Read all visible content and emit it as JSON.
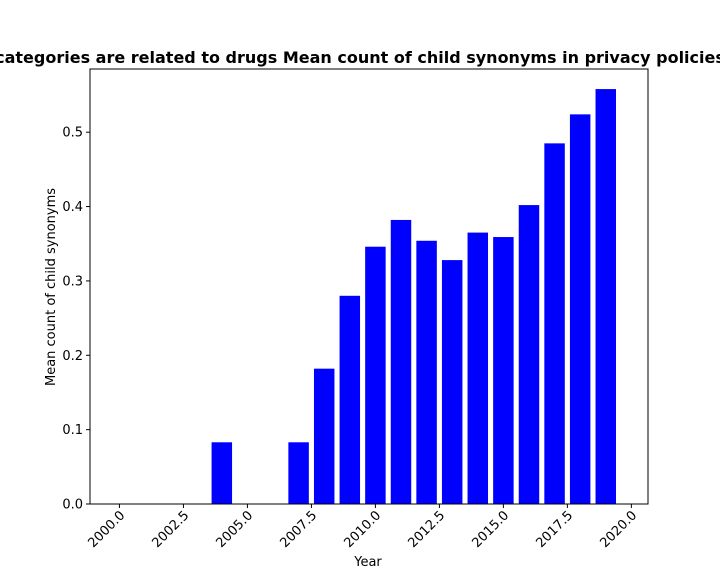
{
  "chart_data": {
    "type": "bar",
    "title": "categories are related to drugs Mean count of child synonyms in privacy policies",
    "xlabel": "Year",
    "ylabel": "Mean count of child synonyms",
    "bar_color": "#0000ff",
    "bar_width": 0.8,
    "xlim": [
      1998.85,
      2020.65
    ],
    "ylim": [
      0,
      0.585
    ],
    "xticks": [
      2000.0,
      2002.5,
      2005.0,
      2007.5,
      2010.0,
      2012.5,
      2015.0,
      2017.5,
      2020.0
    ],
    "xtick_labels": [
      "2000.0",
      "2002.5",
      "2005.0",
      "2007.5",
      "2010.0",
      "2012.5",
      "2015.0",
      "2017.5",
      "2020.0"
    ],
    "yticks": [
      0.0,
      0.1,
      0.2,
      0.3,
      0.4,
      0.5
    ],
    "ytick_labels": [
      "0.0",
      "0.1",
      "0.2",
      "0.3",
      "0.4",
      "0.5"
    ],
    "x": [
      2000,
      2001,
      2002,
      2003,
      2004,
      2005,
      2006,
      2007,
      2008,
      2009,
      2010,
      2011,
      2012,
      2013,
      2014,
      2015,
      2016,
      2017,
      2018,
      2019
    ],
    "values": [
      0,
      0,
      0,
      0,
      0.083,
      0,
      0,
      0.083,
      0.182,
      0.28,
      0.346,
      0.382,
      0.354,
      0.328,
      0.365,
      0.359,
      0.402,
      0.485,
      0.524,
      0.558
    ],
    "legend": null,
    "grid": false
  }
}
